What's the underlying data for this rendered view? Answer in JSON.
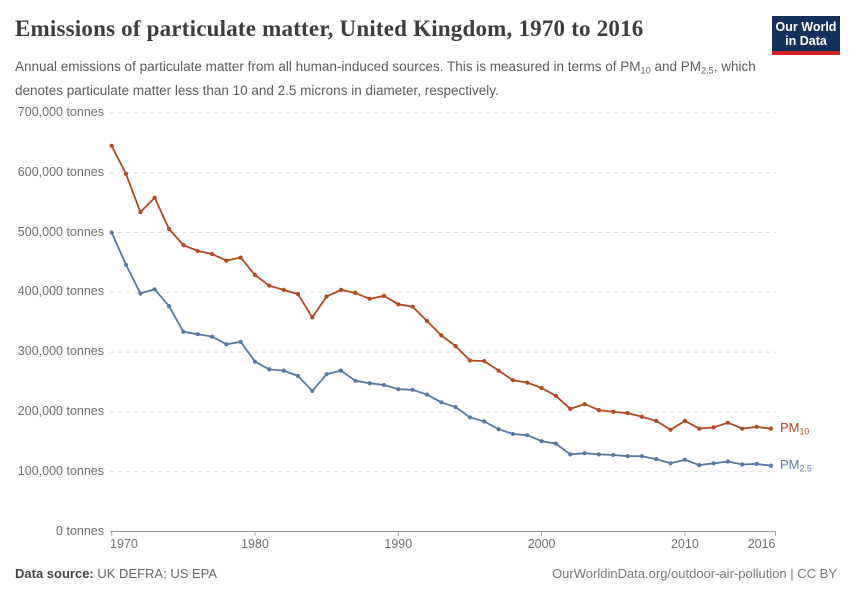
{
  "header": {
    "title": "Emissions of particulate matter, United Kingdom, 1970 to 2016",
    "subtitle_parts": [
      {
        "text": "Annual emissions of particulate matter from all human-induced sources. This is measured in terms of PM"
      },
      {
        "sub": "10"
      },
      {
        "text": " and PM"
      },
      {
        "sub": "2.5"
      },
      {
        "text": ", which denotes particulate matter less than 10 and 2.5 microns in diameter, respectively."
      }
    ],
    "logo": {
      "line1": "Our World",
      "line2": "in Data",
      "bg_color": "#12325c",
      "accent_color": "#cf2428"
    }
  },
  "footer": {
    "source_label": "Data source:",
    "source_value": " UK DEFRA; US EPA",
    "link": "OurWorldinData.org/outdoor-air-pollution | CC BY"
  },
  "chart_data": {
    "type": "line",
    "title": "Emissions of particulate matter, United Kingdom, 1970 to 2016",
    "xlabel": "",
    "ylabel": "tonnes",
    "ylim": [
      0,
      700000
    ],
    "grid": "horizontal-dashed",
    "legend_position": "end-of-line-labels",
    "x": [
      1970,
      1971,
      1972,
      1973,
      1974,
      1975,
      1976,
      1977,
      1978,
      1979,
      1980,
      1981,
      1982,
      1983,
      1984,
      1985,
      1986,
      1987,
      1988,
      1989,
      1990,
      1991,
      1992,
      1993,
      1994,
      1995,
      1996,
      1997,
      1998,
      1999,
      2000,
      2001,
      2002,
      2003,
      2004,
      2005,
      2006,
      2007,
      2008,
      2009,
      2010,
      2011,
      2012,
      2013,
      2014,
      2015,
      2016
    ],
    "xticks": [
      1970,
      1980,
      1990,
      2000,
      2010,
      2016
    ],
    "yticks": [
      0,
      100000,
      200000,
      300000,
      400000,
      500000,
      600000,
      700000
    ],
    "ytick_labels": [
      "0 tonnes",
      "100,000 tonnes",
      "200,000 tonnes",
      "300,000 tonnes",
      "400,000 tonnes",
      "500,000 tonnes",
      "600,000 tonnes",
      "700,000 tonnes"
    ],
    "series": [
      {
        "name": "PM10",
        "label_parts": [
          {
            "text": "PM"
          },
          {
            "sub": "10"
          }
        ],
        "color": "#b2491c",
        "values": [
          645000,
          598000,
          534000,
          558000,
          506000,
          479000,
          469000,
          464000,
          453000,
          458000,
          429000,
          411000,
          404000,
          397000,
          358000,
          393000,
          404000,
          399000,
          389000,
          394000,
          380000,
          376000,
          352000,
          328000,
          310000,
          286000,
          285000,
          269000,
          253000,
          249000,
          240000,
          227000,
          205000,
          213000,
          203000,
          200000,
          198000,
          192000,
          185000,
          170000,
          185000,
          172000,
          174000,
          182000,
          172000,
          175000,
          172000
        ]
      },
      {
        "name": "PM2.5",
        "label_parts": [
          {
            "text": "PM"
          },
          {
            "sub": "2.5"
          }
        ],
        "color": "#5878a3",
        "values": [
          500000,
          446000,
          398000,
          405000,
          377000,
          334000,
          330000,
          326000,
          313000,
          317000,
          284000,
          271000,
          269000,
          260000,
          235000,
          263000,
          269000,
          252000,
          248000,
          245000,
          238000,
          237000,
          229000,
          216000,
          208000,
          191000,
          184000,
          171000,
          163000,
          161000,
          151000,
          147000,
          129000,
          131000,
          129000,
          128000,
          126000,
          126000,
          121000,
          114000,
          120000,
          111000,
          114000,
          117000,
          112000,
          113000,
          110000
        ]
      }
    ]
  }
}
